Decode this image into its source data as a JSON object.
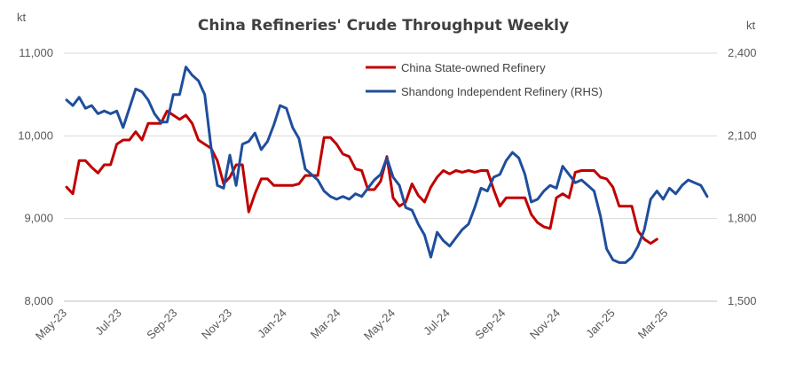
{
  "chart_data": {
    "type": "line",
    "title": "China Refineries' Crude Throughput Weekly",
    "y_unit_left": "kt",
    "y_unit_right": "kt",
    "ylim_left": [
      8000,
      11000
    ],
    "ylim_right": [
      1500,
      2400
    ],
    "yticks_left": [
      "8,000",
      "9,000",
      "10,000",
      "11,000"
    ],
    "yticks_right": [
      "1,500",
      "1,800",
      "2,100",
      "2,400"
    ],
    "xlim": [
      "2023-05-01",
      "2025-04-28"
    ],
    "xticks": [
      "May-23",
      "Jul-23",
      "Sep-23",
      "Nov-23",
      "Jan-24",
      "Mar-24",
      "May-24",
      "Jul-24",
      "Sep-24",
      "Nov-24",
      "Jan-25",
      "Mar-25"
    ],
    "legend_position": "top-right",
    "grid": "horizontal",
    "series": [
      {
        "name": "China State-owned Refinery",
        "axis": "left",
        "color": "#c00000",
        "points": [
          [
            "2023-05-04",
            9380
          ],
          [
            "2023-05-11",
            9300
          ],
          [
            "2023-05-18",
            9700
          ],
          [
            "2023-05-25",
            9700
          ],
          [
            "2023-06-01",
            9620
          ],
          [
            "2023-06-08",
            9550
          ],
          [
            "2023-06-15",
            9650
          ],
          [
            "2023-06-22",
            9650
          ],
          [
            "2023-06-29",
            9900
          ],
          [
            "2023-07-06",
            9950
          ],
          [
            "2023-07-13",
            9950
          ],
          [
            "2023-07-20",
            10050
          ],
          [
            "2023-07-27",
            9950
          ],
          [
            "2023-08-03",
            10150
          ],
          [
            "2023-08-10",
            10150
          ],
          [
            "2023-08-17",
            10150
          ],
          [
            "2023-08-24",
            10300
          ],
          [
            "2023-08-31",
            10250
          ],
          [
            "2023-09-07",
            10200
          ],
          [
            "2023-09-14",
            10250
          ],
          [
            "2023-09-21",
            10150
          ],
          [
            "2023-09-28",
            9950
          ],
          [
            "2023-10-05",
            9900
          ],
          [
            "2023-10-12",
            9850
          ],
          [
            "2023-10-19",
            9700
          ],
          [
            "2023-10-26",
            9420
          ],
          [
            "2023-11-02",
            9500
          ],
          [
            "2023-11-09",
            9650
          ],
          [
            "2023-11-16",
            9650
          ],
          [
            "2023-11-23",
            9080
          ],
          [
            "2023-11-30",
            9300
          ],
          [
            "2023-12-07",
            9480
          ],
          [
            "2023-12-14",
            9480
          ],
          [
            "2023-12-21",
            9400
          ],
          [
            "2023-12-28",
            9400
          ],
          [
            "2024-01-04",
            9400
          ],
          [
            "2024-01-11",
            9400
          ],
          [
            "2024-01-18",
            9420
          ],
          [
            "2024-01-25",
            9520
          ],
          [
            "2024-02-01",
            9520
          ],
          [
            "2024-02-08",
            9520
          ],
          [
            "2024-02-15",
            9980
          ],
          [
            "2024-02-22",
            9980
          ],
          [
            "2024-02-29",
            9900
          ],
          [
            "2024-03-07",
            9780
          ],
          [
            "2024-03-14",
            9750
          ],
          [
            "2024-03-21",
            9600
          ],
          [
            "2024-03-28",
            9580
          ],
          [
            "2024-04-04",
            9350
          ],
          [
            "2024-04-11",
            9350
          ],
          [
            "2024-04-18",
            9450
          ],
          [
            "2024-04-25",
            9750
          ],
          [
            "2024-05-02",
            9250
          ],
          [
            "2024-05-09",
            9150
          ],
          [
            "2024-05-16",
            9200
          ],
          [
            "2024-05-23",
            9420
          ],
          [
            "2024-05-30",
            9280
          ],
          [
            "2024-06-06",
            9200
          ],
          [
            "2024-06-13",
            9380
          ],
          [
            "2024-06-20",
            9500
          ],
          [
            "2024-06-27",
            9580
          ],
          [
            "2024-07-04",
            9540
          ],
          [
            "2024-07-11",
            9580
          ],
          [
            "2024-07-18",
            9560
          ],
          [
            "2024-07-25",
            9580
          ],
          [
            "2024-08-01",
            9560
          ],
          [
            "2024-08-08",
            9580
          ],
          [
            "2024-08-15",
            9580
          ],
          [
            "2024-08-22",
            9350
          ],
          [
            "2024-08-29",
            9150
          ],
          [
            "2024-09-05",
            9250
          ],
          [
            "2024-09-12",
            9250
          ],
          [
            "2024-09-19",
            9250
          ],
          [
            "2024-09-26",
            9250
          ],
          [
            "2024-10-03",
            9050
          ],
          [
            "2024-10-10",
            8950
          ],
          [
            "2024-10-17",
            8900
          ],
          [
            "2024-10-24",
            8880
          ],
          [
            "2024-10-31",
            9250
          ],
          [
            "2024-11-07",
            9300
          ],
          [
            "2024-11-14",
            9250
          ],
          [
            "2024-11-21",
            9560
          ],
          [
            "2024-11-28",
            9580
          ],
          [
            "2024-12-05",
            9580
          ],
          [
            "2024-12-12",
            9580
          ],
          [
            "2024-12-19",
            9500
          ],
          [
            "2024-12-26",
            9480
          ],
          [
            "2025-01-02",
            9380
          ],
          [
            "2025-01-09",
            9150
          ],
          [
            "2025-01-16",
            9150
          ],
          [
            "2025-01-23",
            9150
          ],
          [
            "2025-01-30",
            8850
          ],
          [
            "2025-02-06",
            8750
          ],
          [
            "2025-02-13",
            8700
          ],
          [
            "2025-02-20",
            8750
          ]
        ]
      },
      {
        "name": "Shandong Independent Refinery (RHS)",
        "axis": "right",
        "color": "#1f4e9c",
        "points": [
          [
            "2023-05-04",
            2230
          ],
          [
            "2023-05-11",
            2210
          ],
          [
            "2023-05-18",
            2240
          ],
          [
            "2023-05-25",
            2200
          ],
          [
            "2023-06-01",
            2210
          ],
          [
            "2023-06-08",
            2180
          ],
          [
            "2023-06-15",
            2190
          ],
          [
            "2023-06-22",
            2180
          ],
          [
            "2023-06-29",
            2190
          ],
          [
            "2023-07-06",
            2130
          ],
          [
            "2023-07-13",
            2200
          ],
          [
            "2023-07-20",
            2270
          ],
          [
            "2023-07-27",
            2260
          ],
          [
            "2023-08-03",
            2230
          ],
          [
            "2023-08-10",
            2180
          ],
          [
            "2023-08-17",
            2150
          ],
          [
            "2023-08-24",
            2150
          ],
          [
            "2023-08-31",
            2250
          ],
          [
            "2023-09-07",
            2250
          ],
          [
            "2023-09-14",
            2350
          ],
          [
            "2023-09-21",
            2320
          ],
          [
            "2023-09-28",
            2300
          ],
          [
            "2023-10-05",
            2250
          ],
          [
            "2023-10-12",
            2060
          ],
          [
            "2023-10-19",
            1920
          ],
          [
            "2023-10-26",
            1910
          ],
          [
            "2023-11-02",
            2030
          ],
          [
            "2023-11-09",
            1920
          ],
          [
            "2023-11-16",
            2070
          ],
          [
            "2023-11-23",
            2080
          ],
          [
            "2023-11-30",
            2110
          ],
          [
            "2023-12-07",
            2050
          ],
          [
            "2023-12-14",
            2080
          ],
          [
            "2023-12-21",
            2140
          ],
          [
            "2023-12-28",
            2210
          ],
          [
            "2024-01-04",
            2200
          ],
          [
            "2024-01-11",
            2130
          ],
          [
            "2024-01-18",
            2090
          ],
          [
            "2024-01-25",
            1980
          ],
          [
            "2024-02-01",
            1960
          ],
          [
            "2024-02-08",
            1940
          ],
          [
            "2024-02-15",
            1900
          ],
          [
            "2024-02-22",
            1880
          ],
          [
            "2024-02-29",
            1870
          ],
          [
            "2024-03-07",
            1880
          ],
          [
            "2024-03-14",
            1870
          ],
          [
            "2024-03-21",
            1890
          ],
          [
            "2024-03-28",
            1880
          ],
          [
            "2024-04-04",
            1910
          ],
          [
            "2024-04-11",
            1940
          ],
          [
            "2024-04-18",
            1960
          ],
          [
            "2024-04-25",
            2020
          ],
          [
            "2024-05-02",
            1950
          ],
          [
            "2024-05-09",
            1920
          ],
          [
            "2024-05-16",
            1840
          ],
          [
            "2024-05-23",
            1830
          ],
          [
            "2024-05-30",
            1780
          ],
          [
            "2024-06-06",
            1740
          ],
          [
            "2024-06-13",
            1660
          ],
          [
            "2024-06-20",
            1750
          ],
          [
            "2024-06-27",
            1720
          ],
          [
            "2024-07-04",
            1700
          ],
          [
            "2024-07-11",
            1730
          ],
          [
            "2024-07-18",
            1760
          ],
          [
            "2024-07-25",
            1780
          ],
          [
            "2024-08-01",
            1840
          ],
          [
            "2024-08-08",
            1910
          ],
          [
            "2024-08-15",
            1900
          ],
          [
            "2024-08-22",
            1950
          ],
          [
            "2024-08-29",
            1960
          ],
          [
            "2024-09-05",
            2010
          ],
          [
            "2024-09-12",
            2040
          ],
          [
            "2024-09-19",
            2020
          ],
          [
            "2024-09-26",
            1960
          ],
          [
            "2024-10-03",
            1860
          ],
          [
            "2024-10-10",
            1870
          ],
          [
            "2024-10-17",
            1900
          ],
          [
            "2024-10-24",
            1920
          ],
          [
            "2024-10-31",
            1910
          ],
          [
            "2024-11-07",
            1990
          ],
          [
            "2024-11-14",
            1960
          ],
          [
            "2024-11-21",
            1930
          ],
          [
            "2024-11-28",
            1940
          ],
          [
            "2024-12-05",
            1920
          ],
          [
            "2024-12-12",
            1900
          ],
          [
            "2024-12-19",
            1810
          ],
          [
            "2024-12-26",
            1690
          ],
          [
            "2025-01-02",
            1650
          ],
          [
            "2025-01-09",
            1640
          ],
          [
            "2025-01-16",
            1640
          ],
          [
            "2025-01-23",
            1660
          ],
          [
            "2025-01-30",
            1700
          ],
          [
            "2025-02-06",
            1760
          ],
          [
            "2025-02-13",
            1870
          ],
          [
            "2025-02-20",
            1900
          ],
          [
            "2025-02-27",
            1870
          ],
          [
            "2025-03-06",
            1910
          ],
          [
            "2025-03-13",
            1890
          ],
          [
            "2025-03-20",
            1920
          ],
          [
            "2025-03-27",
            1940
          ],
          [
            "2025-04-03",
            1930
          ],
          [
            "2025-04-10",
            1920
          ],
          [
            "2025-04-17",
            1880
          ]
        ]
      }
    ]
  }
}
